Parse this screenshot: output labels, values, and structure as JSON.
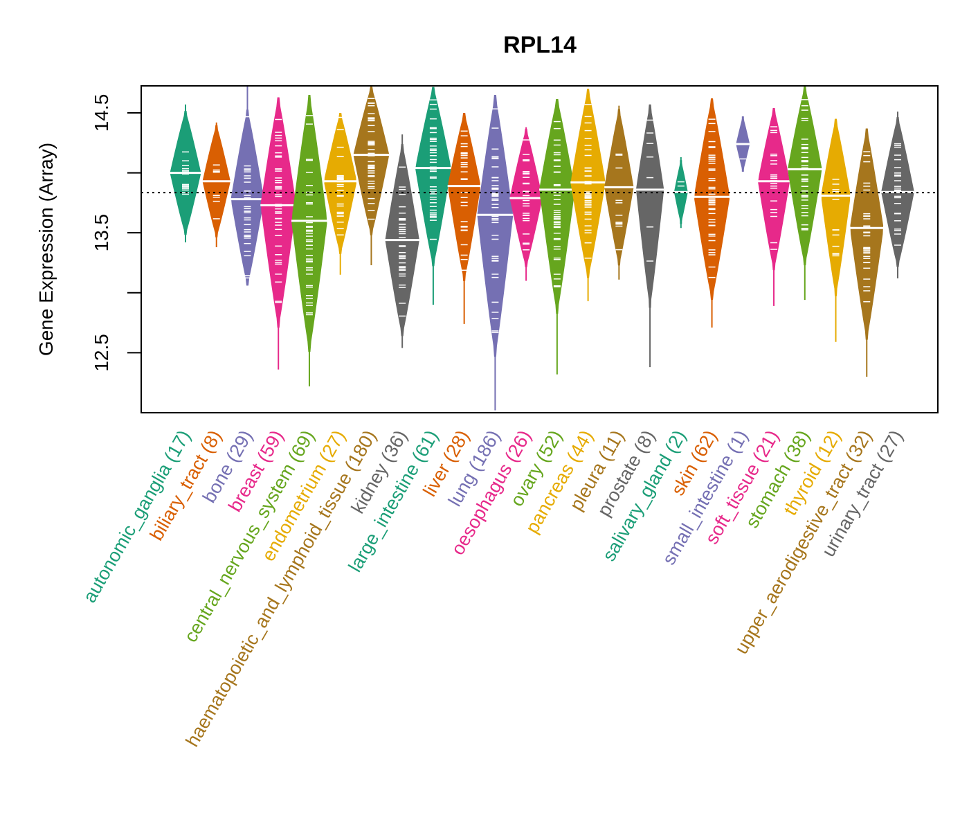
{
  "chart_data": {
    "type": "violin",
    "title": "RPL14",
    "xlabel": "",
    "ylabel": "Gene Expression (Array)",
    "ylim": [
      12.0,
      14.725
    ],
    "yticks": [
      12.5,
      13.0,
      13.5,
      14.0,
      14.5
    ],
    "ytick_labels": [
      "12.5",
      "",
      "13.5",
      "",
      "14.5"
    ],
    "reference_line": 13.835,
    "grid": false,
    "categories": [
      {
        "name": "autonomic_ganglia",
        "n": 17,
        "color": "#1B9E77",
        "min": 13.42,
        "max": 14.57,
        "median": 14.0
      },
      {
        "name": "biliary_tract",
        "n": 8,
        "color": "#D95F02",
        "min": 13.38,
        "max": 14.42,
        "median": 13.93
      },
      {
        "name": "bone",
        "n": 29,
        "color": "#7570B3",
        "min": 13.06,
        "max": 14.72,
        "median": 13.78
      },
      {
        "name": "breast",
        "n": 59,
        "color": "#E7298A",
        "min": 12.36,
        "max": 14.63,
        "median": 13.73
      },
      {
        "name": "central_nervous_system",
        "n": 69,
        "color": "#66A61E",
        "min": 12.22,
        "max": 14.65,
        "median": 13.6
      },
      {
        "name": "endometrium",
        "n": 27,
        "color": "#E6AB02",
        "min": 13.15,
        "max": 14.5,
        "median": 13.93
      },
      {
        "name": "haematopoietic_and_lymphoid_tissue",
        "n": 180,
        "color": "#A6761D",
        "min": 13.23,
        "max": 14.72,
        "median": 14.15
      },
      {
        "name": "kidney",
        "n": 36,
        "color": "#666666",
        "min": 12.54,
        "max": 14.32,
        "median": 13.44
      },
      {
        "name": "large_intestine",
        "n": 61,
        "color": "#1B9E77",
        "min": 12.9,
        "max": 14.72,
        "median": 14.04
      },
      {
        "name": "liver",
        "n": 28,
        "color": "#D95F02",
        "min": 12.74,
        "max": 14.5,
        "median": 13.89
      },
      {
        "name": "lung",
        "n": 186,
        "color": "#7570B3",
        "min": 12.02,
        "max": 14.65,
        "median": 13.65
      },
      {
        "name": "oesophagus",
        "n": 26,
        "color": "#E7298A",
        "min": 13.1,
        "max": 14.38,
        "median": 13.79
      },
      {
        "name": "ovary",
        "n": 52,
        "color": "#66A61E",
        "min": 12.32,
        "max": 14.62,
        "median": 13.86
      },
      {
        "name": "pancreas",
        "n": 44,
        "color": "#E6AB02",
        "min": 12.93,
        "max": 14.7,
        "median": 13.92
      },
      {
        "name": "pleura",
        "n": 11,
        "color": "#A6761D",
        "min": 13.11,
        "max": 14.56,
        "median": 13.88
      },
      {
        "name": "prostate",
        "n": 8,
        "color": "#666666",
        "min": 12.38,
        "max": 14.57,
        "median": 13.86
      },
      {
        "name": "salivary_gland",
        "n": 2,
        "color": "#1B9E77",
        "min": 13.54,
        "max": 14.13,
        "median": 13.84
      },
      {
        "name": "skin",
        "n": 62,
        "color": "#D95F02",
        "min": 12.71,
        "max": 14.62,
        "median": 13.8
      },
      {
        "name": "small_intestine",
        "n": 1,
        "color": "#7570B3",
        "min": 14.01,
        "max": 14.47,
        "median": 14.24
      },
      {
        "name": "soft_tissue",
        "n": 21,
        "color": "#E7298A",
        "min": 12.89,
        "max": 14.54,
        "median": 13.93
      },
      {
        "name": "stomach",
        "n": 38,
        "color": "#66A61E",
        "min": 12.94,
        "max": 14.72,
        "median": 14.03
      },
      {
        "name": "thyroid",
        "n": 12,
        "color": "#E6AB02",
        "min": 12.59,
        "max": 14.45,
        "median": 13.81
      },
      {
        "name": "upper_aerodigestive_tract",
        "n": 32,
        "color": "#A6761D",
        "min": 12.3,
        "max": 14.37,
        "median": 13.54
      },
      {
        "name": "urinary_tract",
        "n": 27,
        "color": "#666666",
        "min": 13.12,
        "max": 14.51,
        "median": 13.84
      }
    ]
  }
}
